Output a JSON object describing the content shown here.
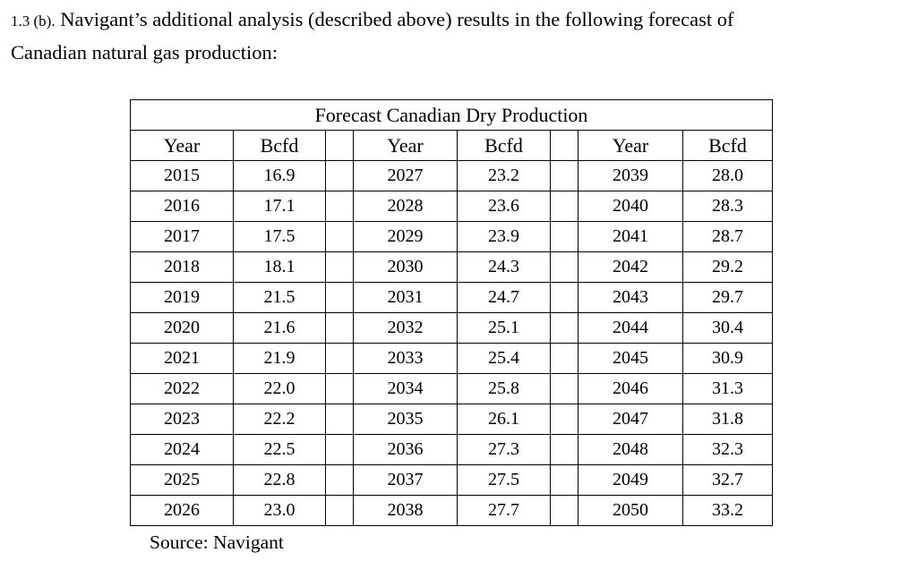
{
  "intro": {
    "number": "1.3 (b).",
    "line1": "Navigant’s additional analysis (described above) results in the following forecast of",
    "line2": "Canadian natural gas production:"
  },
  "table": {
    "title": "Forecast Canadian Dry Production",
    "headers": {
      "year": "Year",
      "bcfd": "Bcfd"
    },
    "rows": [
      [
        "2015",
        "16.9",
        "2027",
        "23.2",
        "2039",
        "28.0"
      ],
      [
        "2016",
        "17.1",
        "2028",
        "23.6",
        "2040",
        "28.3"
      ],
      [
        "2017",
        "17.5",
        "2029",
        "23.9",
        "2041",
        "28.7"
      ],
      [
        "2018",
        "18.1",
        "2030",
        "24.3",
        "2042",
        "29.2"
      ],
      [
        "2019",
        "21.5",
        "2031",
        "24.7",
        "2043",
        "29.7"
      ],
      [
        "2020",
        "21.6",
        "2032",
        "25.1",
        "2044",
        "30.4"
      ],
      [
        "2021",
        "21.9",
        "2033",
        "25.4",
        "2045",
        "30.9"
      ],
      [
        "2022",
        "22.0",
        "2034",
        "25.8",
        "2046",
        "31.3"
      ],
      [
        "2023",
        "22.2",
        "2035",
        "26.1",
        "2047",
        "31.8"
      ],
      [
        "2024",
        "22.5",
        "2036",
        "27.3",
        "2048",
        "32.3"
      ],
      [
        "2025",
        "22.8",
        "2037",
        "27.5",
        "2049",
        "32.7"
      ],
      [
        "2026",
        "23.0",
        "2038",
        "27.7",
        "2050",
        "33.2"
      ]
    ]
  },
  "source": "Source: Navigant"
}
